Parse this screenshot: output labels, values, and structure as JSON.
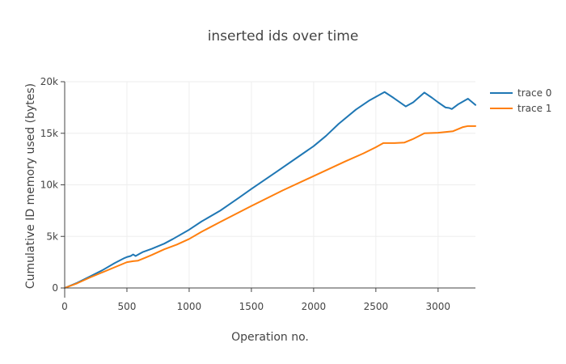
{
  "chart_data": {
    "type": "line",
    "title": "inserted ids over time",
    "xlabel": "Operation no.",
    "ylabel": "Cumulative ID memory used (bytes)",
    "xlim": [
      0,
      3300
    ],
    "ylim": [
      0,
      20000
    ],
    "xticks": [
      0,
      500,
      1000,
      1500,
      2000,
      2500,
      3000
    ],
    "xtick_labels": [
      "0",
      "500",
      "1000",
      "1500",
      "2000",
      "2500",
      "3000"
    ],
    "yticks": [
      0,
      5000,
      10000,
      15000,
      20000
    ],
    "ytick_labels": [
      "0",
      "5k",
      "10k",
      "15k",
      "20k"
    ],
    "grid": true,
    "legend_position": "right",
    "series": [
      {
        "name": "trace 0",
        "color": "#1f77b4",
        "x": [
          0,
          100,
          200,
          300,
          400,
          480,
          500,
          530,
          550,
          570,
          600,
          630,
          700,
          800,
          870,
          1000,
          1100,
          1250,
          1400,
          1500,
          1700,
          1850,
          2000,
          2100,
          2200,
          2340,
          2450,
          2570,
          2640,
          2740,
          2800,
          2890,
          2950,
          3000,
          3060,
          3090,
          3110,
          3160,
          3240,
          3300
        ],
        "y": [
          0,
          500,
          1100,
          1700,
          2400,
          2900,
          3000,
          3100,
          3250,
          3100,
          3300,
          3500,
          3800,
          4300,
          4750,
          5650,
          6450,
          7500,
          8750,
          9600,
          11250,
          12500,
          13750,
          14750,
          15900,
          17300,
          18200,
          19000,
          18450,
          17600,
          18000,
          18950,
          18450,
          18000,
          17500,
          17450,
          17350,
          17800,
          18350,
          17750
        ]
      },
      {
        "name": "trace 1",
        "color": "#ff7f0e",
        "x": [
          0,
          100,
          200,
          300,
          400,
          500,
          550,
          590,
          650,
          700,
          800,
          900,
          1000,
          1100,
          1250,
          1500,
          1750,
          2000,
          2250,
          2400,
          2500,
          2560,
          2650,
          2730,
          2800,
          2890,
          3000,
          3120,
          3200,
          3240,
          3300
        ],
        "y": [
          0,
          450,
          1000,
          1500,
          2000,
          2500,
          2600,
          2650,
          2950,
          3200,
          3750,
          4200,
          4750,
          5450,
          6400,
          7950,
          9450,
          10850,
          12250,
          13050,
          13650,
          14050,
          14050,
          14100,
          14450,
          15000,
          15050,
          15200,
          15600,
          15700,
          15700
        ]
      }
    ]
  }
}
